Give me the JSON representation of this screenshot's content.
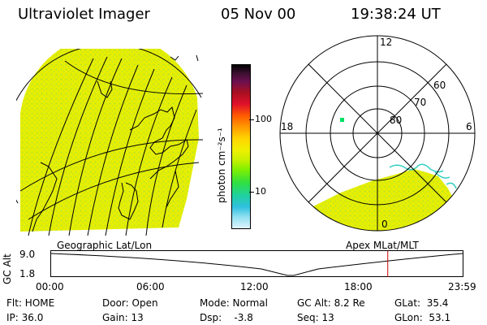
{
  "header": {
    "title": "Ultraviolet Imager",
    "date": "05 Nov 00",
    "time": "19:38:24 UT"
  },
  "colorbar": {
    "unit_label": "photon cm⁻²s⁻¹",
    "tick_labels": [
      "100",
      "10"
    ],
    "colors": [
      "#000000",
      "#3b1030",
      "#6b1050",
      "#aa1020",
      "#e0102a",
      "#ff5a00",
      "#ff9a00",
      "#ffd400",
      "#f0f000",
      "#c8f000",
      "#80f000",
      "#30e040",
      "#20d0a0",
      "#30c0e0",
      "#90e0f0",
      "#e0f4ff"
    ]
  },
  "polar_plot": {
    "ring_labels": [
      "80",
      "70",
      "60"
    ],
    "mlt_labels": {
      "top": "12",
      "left": "18",
      "right": "6",
      "bottom": "0"
    },
    "title": "Apex MLat/MLT"
  },
  "geo_plot": {
    "title": "Geographic Lat/Lon"
  },
  "altitude_strip": {
    "axis_label": "GC Alt",
    "y_ticks": [
      "9.0",
      "1.8"
    ],
    "x_ticks": [
      "00:00",
      "06:00",
      "12:00",
      "18:00",
      "23:59"
    ],
    "current_time_fraction": 0.818
  },
  "status": {
    "flt": "Flt: HOME",
    "ip": "IP: 36.0",
    "door": "Door: Open",
    "gain": "Gain: 13",
    "mode": "Mode: Normal",
    "dsp": "Dsp:    -3.8",
    "gc_alt": "GC Alt: 8.2 Re",
    "seq": "Seq: 13",
    "glat": "GLat:  35.4",
    "glon": "GLon:  53.1"
  },
  "palette": {
    "image_fill": "#e6ee00",
    "image_speckle": "#a8e23a",
    "marker": "#00e060",
    "time_marker": "#cc0000"
  }
}
